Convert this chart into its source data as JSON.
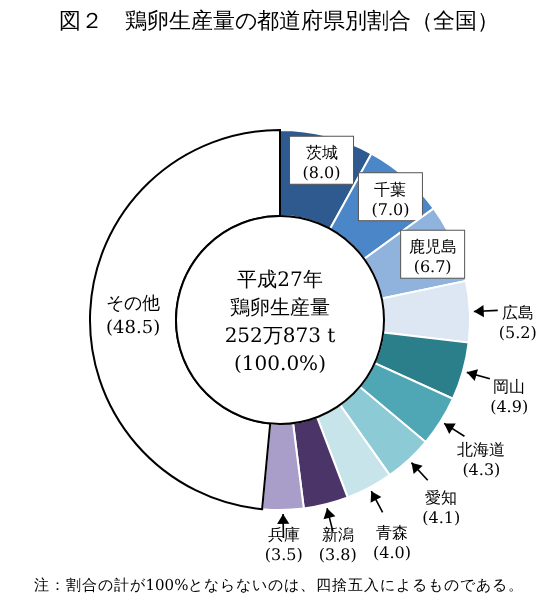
{
  "chart_data": {
    "type": "donut",
    "title": "図２　鶏卵生産量の都道府県別割合（全国）",
    "categories": [
      "茨城",
      "千葉",
      "鹿児島",
      "広島",
      "岡山",
      "北海道",
      "愛知",
      "青森",
      "新潟",
      "兵庫",
      "その他"
    ],
    "values": [
      8.0,
      7.0,
      6.7,
      5.2,
      4.9,
      4.3,
      4.1,
      4.0,
      3.8,
      3.5,
      48.5
    ],
    "value_labels": [
      "(8.0)",
      "(7.0)",
      "(6.7)",
      "(5.2)",
      "(4.9)",
      "(4.3)",
      "(4.1)",
      "(4.0)",
      "(3.8)",
      "(3.5)",
      "(48.5)"
    ],
    "colors": [
      "#2f5a8f",
      "#4a86c8",
      "#8fb3dd",
      "#dde7f3",
      "#2a7f8a",
      "#4fa7b5",
      "#8ccbd6",
      "#c6e4ea",
      "#4b3468",
      "#a99dc9",
      "#ffffff"
    ],
    "annotations": [
      "平成27年",
      "鶏卵生産量",
      "252万873 t",
      "(100.0%)",
      "注：割合の計が100%とならないのは、四捨五入によるものである。"
    ]
  }
}
